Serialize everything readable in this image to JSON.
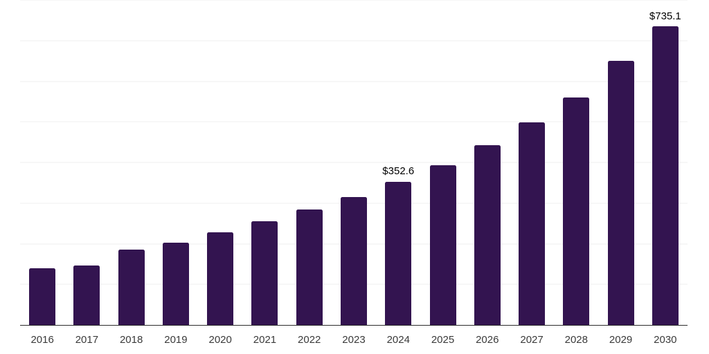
{
  "chart_data": {
    "type": "bar",
    "title": "",
    "xlabel": "",
    "ylabel": "",
    "categories": [
      "2016",
      "2017",
      "2018",
      "2019",
      "2020",
      "2021",
      "2022",
      "2023",
      "2024",
      "2025",
      "2026",
      "2027",
      "2028",
      "2029",
      "2030"
    ],
    "values": [
      139.4,
      147.2,
      185.4,
      203.0,
      227.4,
      254.7,
      284.4,
      315.6,
      352.6,
      393.6,
      442.4,
      498.7,
      560.8,
      649.5,
      735.1
    ],
    "ylim": [
      0,
      800
    ],
    "grid_step": 100,
    "grid": true,
    "legend": false,
    "annotations": [
      {
        "category": "2024",
        "label": "$352.6"
      },
      {
        "category": "2030",
        "label": "$735.1"
      }
    ],
    "colors": {
      "bar": "#331450",
      "axis": "#2b2b2b",
      "gridline": "#efefef",
      "tick_label": "#3a3a3a",
      "value_label": "#000000"
    }
  }
}
